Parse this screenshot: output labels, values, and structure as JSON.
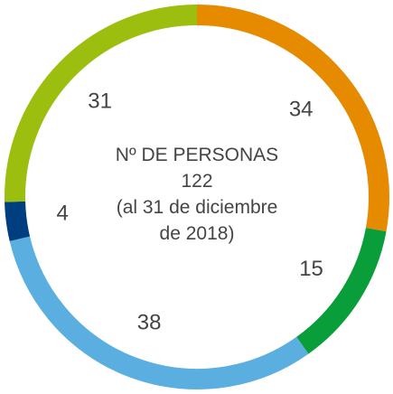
{
  "chart_data": {
    "type": "donut",
    "values": [
      34,
      15,
      38,
      4,
      31
    ],
    "colors": [
      "#e68a00",
      "#0a9e3a",
      "#5aafe0",
      "#003f7f",
      "#9cbf0f"
    ],
    "center_text": [
      "Nº DE PERSONAS",
      "122",
      "(al 31 de diciembre",
      "de 2018)"
    ]
  }
}
